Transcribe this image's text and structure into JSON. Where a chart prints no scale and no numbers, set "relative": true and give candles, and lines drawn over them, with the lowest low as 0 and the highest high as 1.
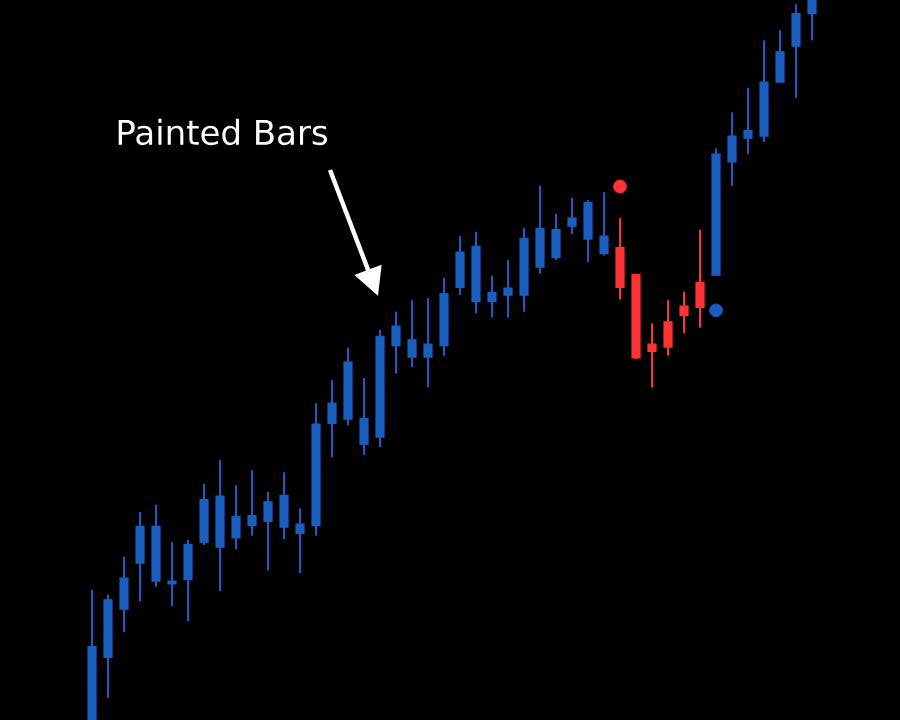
{
  "chart_data": {
    "type": "candlestick",
    "relative": true,
    "categories": [
      null,
      null,
      null,
      null,
      null,
      null,
      null,
      null,
      null,
      null,
      null,
      null,
      null,
      null,
      null,
      null,
      null,
      null,
      null,
      null,
      null,
      null,
      null,
      null,
      null,
      null,
      null,
      null,
      null,
      null,
      null,
      null,
      null,
      null,
      null,
      null,
      null,
      null,
      null,
      null,
      null,
      null,
      null,
      null,
      null,
      null
    ],
    "ohlc": [
      [
        0,
        0.181,
        0,
        0.102
      ],
      [
        0.087,
        0.174,
        0.031,
        0.167
      ],
      [
        0.154,
        0.227,
        0.122,
        0.197
      ],
      [
        0.218,
        0.289,
        0.165,
        0.269
      ],
      [
        0.193,
        0.299,
        0.185,
        0.269
      ],
      [
        0.189,
        0.247,
        0.158,
        0.193
      ],
      [
        0.195,
        0.25,
        0.137,
        0.244
      ],
      [
        0.247,
        0.328,
        0.243,
        0.306
      ],
      [
        0.24,
        0.361,
        0.179,
        0.311
      ],
      [
        0.253,
        0.326,
        0.237,
        0.283
      ],
      [
        0.27,
        0.347,
        0.256,
        0.284
      ],
      [
        0.276,
        0.317,
        0.208,
        0.303
      ],
      [
        0.268,
        0.344,
        0.251,
        0.312
      ],
      [
        0.259,
        0.294,
        0.204,
        0.272
      ],
      [
        0.27,
        0.44,
        0.256,
        0.411
      ],
      [
        0.412,
        0.472,
        0.365,
        0.44
      ],
      [
        0.418,
        0.517,
        0.409,
        0.497
      ],
      [
        0.383,
        0.475,
        0.368,
        0.419
      ],
      [
        0.393,
        0.542,
        0.379,
        0.533
      ],
      [
        0.52,
        0.567,
        0.481,
        0.547
      ],
      [
        0.504,
        0.583,
        0.49,
        0.528
      ],
      [
        0.504,
        0.586,
        0.462,
        0.522
      ],
      [
        0.52,
        0.614,
        0.506,
        0.592
      ],
      [
        0.601,
        0.672,
        0.59,
        0.65
      ],
      [
        0.581,
        0.678,
        0.565,
        0.658
      ],
      [
        0.581,
        0.617,
        0.559,
        0.594
      ],
      [
        0.59,
        0.639,
        0.559,
        0.6
      ],
      [
        0.59,
        0.683,
        0.567,
        0.669
      ],
      [
        0.629,
        0.742,
        0.62,
        0.683
      ],
      [
        0.642,
        0.703,
        0.639,
        0.681
      ],
      [
        0.686,
        0.725,
        0.675,
        0.697
      ],
      [
        0.668,
        0.722,
        0.636,
        0.719
      ],
      [
        0.648,
        0.733,
        0.645,
        0.672
      ],
      [
        0.656,
        0.697,
        0.584,
        0.601
      ],
      [
        0.619,
        0.619,
        0.501,
        0.503
      ],
      [
        0.522,
        0.551,
        0.462,
        0.512
      ],
      [
        0.553,
        0.583,
        0.506,
        0.518
      ],
      [
        0.575,
        0.595,
        0.537,
        0.562
      ],
      [
        0.608,
        0.681,
        0.545,
        0.573
      ],
      [
        0.618,
        0.794,
        0.618,
        0.786
      ],
      [
        0.775,
        0.844,
        0.742,
        0.811
      ],
      [
        0.808,
        0.878,
        0.786,
        0.819
      ],
      [
        0.811,
        0.944,
        0.803,
        0.886
      ],
      [
        0.886,
        0.958,
        0.886,
        0.928
      ],
      [
        0.936,
        0.994,
        0.864,
        0.981
      ],
      [
        0.981,
        1,
        0.944,
        1
      ]
    ],
    "colors": [
      "#1a5fc0",
      "#1a5fc0",
      "#1a5fc0",
      "#1a5fc0",
      "#1a5fc0",
      "#1a5fc0",
      "#1a5fc0",
      "#1a5fc0",
      "#1a5fc0",
      "#1a5fc0",
      "#1a5fc0",
      "#1a5fc0",
      "#1a5fc0",
      "#1a5fc0",
      "#1a5fc0",
      "#1a5fc0",
      "#1a5fc0",
      "#1a5fc0",
      "#1a5fc0",
      "#1a5fc0",
      "#1a5fc0",
      "#1a5fc0",
      "#1a5fc0",
      "#1a5fc0",
      "#1a5fc0",
      "#1a5fc0",
      "#1a5fc0",
      "#1a5fc0",
      "#1a5fc0",
      "#1a5fc0",
      "#1a5fc0",
      "#1a5fc0",
      "#1a5fc0",
      "#ff3333",
      "#ff3333",
      "#ff3333",
      "#ff3333",
      "#ff3333",
      "#ff3333",
      "#1a5fc0",
      "#1a5fc0",
      "#1a5fc0",
      "#1a5fc0",
      "#1a5fc0",
      "#1a5fc0",
      "#1a5fc0"
    ],
    "series": [
      {
        "type": "scatter",
        "color": "#ff3333",
        "values": [
          null,
          null,
          null,
          null,
          null,
          null,
          null,
          null,
          null,
          null,
          null,
          null,
          null,
          null,
          null,
          null,
          null,
          null,
          null,
          null,
          null,
          null,
          null,
          null,
          null,
          null,
          null,
          null,
          null,
          null,
          null,
          null,
          null,
          0.741,
          null,
          null,
          null,
          null,
          null,
          null,
          null,
          null,
          null,
          null,
          null,
          null
        ]
      },
      {
        "type": "scatter",
        "color": "#1a5fc0",
        "values": [
          null,
          null,
          null,
          null,
          null,
          null,
          null,
          null,
          null,
          null,
          null,
          null,
          null,
          null,
          null,
          null,
          null,
          null,
          null,
          null,
          null,
          null,
          null,
          null,
          null,
          null,
          null,
          null,
          null,
          null,
          null,
          null,
          null,
          null,
          null,
          null,
          null,
          null,
          null,
          0.569,
          null,
          null,
          null,
          null,
          null,
          null
        ]
      }
    ],
    "marker": "circle",
    "annotations": [
      "Painted Bars"
    ]
  }
}
